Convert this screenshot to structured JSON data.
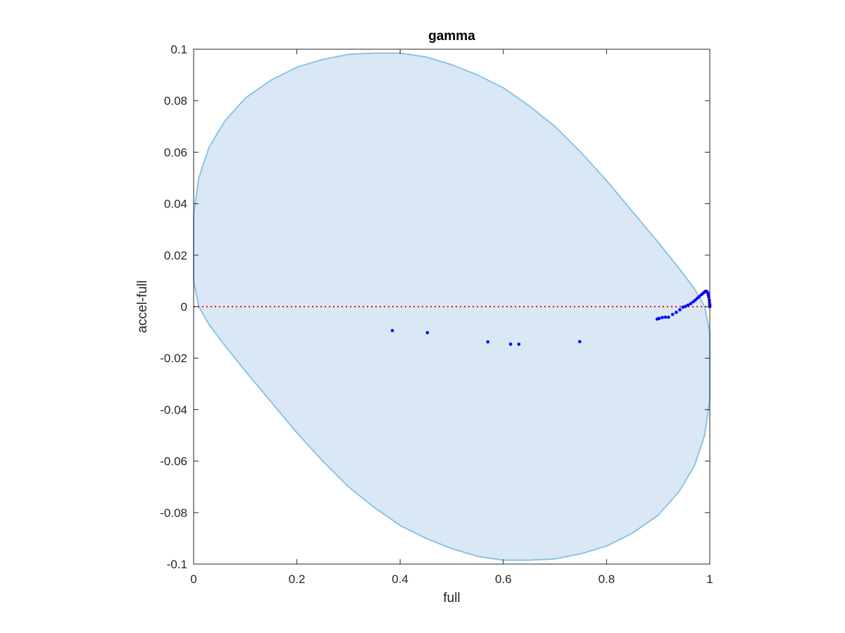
{
  "chart_data": {
    "type": "scatter",
    "title": "gamma",
    "xlabel": "full",
    "ylabel": "accel-full",
    "xlim": [
      0,
      1
    ],
    "ylim": [
      -0.1,
      0.1
    ],
    "xticks": [
      0,
      0.2,
      0.4,
      0.6,
      0.8,
      1
    ],
    "xtick_labels": [
      "0",
      "0.2",
      "0.4",
      "0.6",
      "0.8",
      "1"
    ],
    "yticks": [
      -0.1,
      -0.08,
      -0.06,
      -0.04,
      -0.02,
      0,
      0.02,
      0.04,
      0.06,
      0.08,
      0.1
    ],
    "ytick_labels": [
      "-0.1",
      "-0.08",
      "-0.06",
      "-0.04",
      "-0.02",
      "0",
      "0.02",
      "0.04",
      "0.06",
      "0.08",
      "0.1"
    ],
    "grid": false,
    "region": {
      "shape": "ellipse",
      "fill_color": "#d9e8f4",
      "edge_color": "#8ec3e6",
      "boundary": [
        [
          0.0,
          0.036
        ],
        [
          0.01,
          0.05
        ],
        [
          0.03,
          0.062
        ],
        [
          0.06,
          0.072
        ],
        [
          0.1,
          0.081
        ],
        [
          0.15,
          0.088
        ],
        [
          0.2,
          0.093
        ],
        [
          0.25,
          0.096
        ],
        [
          0.3,
          0.098
        ],
        [
          0.35,
          0.0985
        ],
        [
          0.4,
          0.0985
        ],
        [
          0.45,
          0.097
        ],
        [
          0.5,
          0.094
        ],
        [
          0.55,
          0.09
        ],
        [
          0.6,
          0.085
        ],
        [
          0.65,
          0.078
        ],
        [
          0.7,
          0.07
        ],
        [
          0.75,
          0.06
        ],
        [
          0.8,
          0.049
        ],
        [
          0.85,
          0.037
        ],
        [
          0.9,
          0.025
        ],
        [
          0.94,
          0.015
        ],
        [
          0.97,
          0.007
        ],
        [
          0.99,
          0.0
        ],
        [
          1.0,
          -0.01
        ],
        [
          1.0,
          -0.036
        ],
        [
          0.99,
          -0.05
        ],
        [
          0.97,
          -0.062
        ],
        [
          0.94,
          -0.072
        ],
        [
          0.9,
          -0.081
        ],
        [
          0.85,
          -0.088
        ],
        [
          0.8,
          -0.093
        ],
        [
          0.75,
          -0.096
        ],
        [
          0.7,
          -0.098
        ],
        [
          0.65,
          -0.0985
        ],
        [
          0.6,
          -0.0985
        ],
        [
          0.55,
          -0.097
        ],
        [
          0.5,
          -0.094
        ],
        [
          0.45,
          -0.09
        ],
        [
          0.4,
          -0.085
        ],
        [
          0.35,
          -0.078
        ],
        [
          0.3,
          -0.07
        ],
        [
          0.25,
          -0.06
        ],
        [
          0.2,
          -0.049
        ],
        [
          0.15,
          -0.037
        ],
        [
          0.1,
          -0.025
        ],
        [
          0.06,
          -0.015
        ],
        [
          0.03,
          -0.007
        ],
        [
          0.01,
          0.0
        ],
        [
          0.0,
          0.01
        ]
      ]
    },
    "reference_line": {
      "y": 0,
      "color": "#ff0000",
      "style": "dotted"
    },
    "series": [
      {
        "marker_color": "#0000ff",
        "points": [
          [
            0.385,
            -0.0093
          ],
          [
            0.453,
            -0.0101
          ],
          [
            0.57,
            -0.0137
          ],
          [
            0.614,
            -0.0146
          ],
          [
            0.63,
            -0.0146
          ],
          [
            0.748,
            -0.0136
          ],
          [
            0.898,
            -0.0048
          ],
          [
            0.902,
            -0.0046
          ],
          [
            0.908,
            -0.0042
          ],
          [
            0.914,
            -0.0041
          ],
          [
            0.92,
            -0.0041
          ],
          [
            0.928,
            -0.003
          ],
          [
            0.935,
            -0.0022
          ],
          [
            0.942,
            -0.0012
          ],
          [
            0.948,
            -0.0002
          ],
          [
            0.953,
            0.0001
          ],
          [
            0.958,
            0.0006
          ],
          [
            0.963,
            0.0012
          ],
          [
            0.968,
            0.0019
          ],
          [
            0.972,
            0.0026
          ],
          [
            0.976,
            0.0033
          ],
          [
            0.98,
            0.004
          ],
          [
            0.984,
            0.0047
          ],
          [
            0.987,
            0.0052
          ],
          [
            0.99,
            0.0057
          ],
          [
            0.992,
            0.006
          ],
          [
            0.994,
            0.0059
          ],
          [
            0.996,
            0.0054
          ],
          [
            0.997,
            0.0046
          ],
          [
            0.998,
            0.0037
          ],
          [
            0.999,
            0.0026
          ],
          [
            0.9995,
            0.0016
          ],
          [
            1.0,
            0.0008
          ],
          [
            1.0,
            0.0003
          ],
          [
            1.0,
            0.0
          ]
        ]
      }
    ]
  }
}
